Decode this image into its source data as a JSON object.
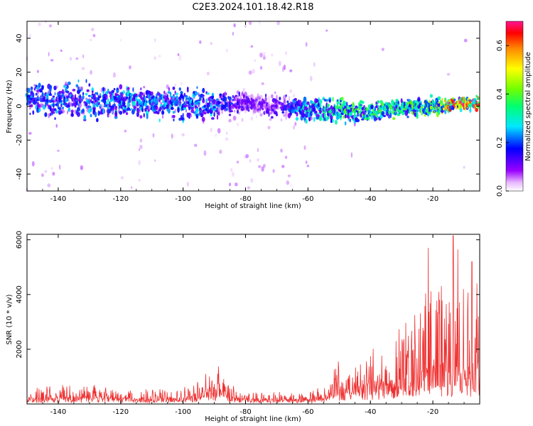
{
  "title": "C2E3.2024.101.18.42.R18",
  "chart_data": [
    {
      "type": "heatmap",
      "xlabel": "Height of straight line (km)",
      "ylabel": "Frequency (Hz)",
      "xlim": [
        -150,
        -5
      ],
      "ylim": [
        -50,
        50
      ],
      "xticks": [
        -140,
        -120,
        -100,
        -80,
        -60,
        -40,
        -20
      ],
      "xtick_labels": [
        "-140",
        "-120",
        "-100",
        "-80",
        "-60",
        "-40",
        "-20"
      ],
      "yticks": [
        -40,
        -20,
        0,
        20,
        40
      ],
      "ytick_labels": [
        "-40",
        "-20",
        "0",
        "20",
        "40"
      ],
      "colorbar": {
        "label": "Normalized spectral amplitude",
        "range": [
          0,
          0.7
        ],
        "ticks": [
          0.0,
          0.2,
          0.4,
          0.6
        ],
        "tick_labels": [
          "0.0",
          "0.2",
          "0.4",
          "0.6"
        ],
        "colormap": "rainbow-white-to-magenta"
      },
      "profile": [
        {
          "x": -150,
          "center": 4,
          "halfwidth": 8,
          "amp": 0.18,
          "scatter": 0.35
        },
        {
          "x": -130,
          "center": 3,
          "halfwidth": 8,
          "amp": 0.2,
          "scatter": 0.35
        },
        {
          "x": -120,
          "center": 3,
          "halfwidth": 6,
          "amp": 0.22,
          "scatter": 0.3
        },
        {
          "x": -100,
          "center": 1,
          "halfwidth": 7,
          "amp": 0.2,
          "scatter": 0.3
        },
        {
          "x": -90,
          "center": 1,
          "halfwidth": 6,
          "amp": 0.2,
          "scatter": 0.3
        },
        {
          "x": -80,
          "center": 1,
          "halfwidth": 4,
          "amp": 0.1,
          "scatter": 0.6
        },
        {
          "x": -70,
          "center": 0,
          "halfwidth": 4,
          "amp": 0.1,
          "scatter": 0.6
        },
        {
          "x": -60,
          "center": -2,
          "halfwidth": 5,
          "amp": 0.25,
          "scatter": 0.3
        },
        {
          "x": -55,
          "center": -2,
          "halfwidth": 5,
          "amp": 0.25,
          "scatter": 0.2
        },
        {
          "x": -50,
          "center": -3,
          "halfwidth": 5,
          "amp": 0.3,
          "scatter": 0.05
        },
        {
          "x": -40,
          "center": -3,
          "halfwidth": 5,
          "amp": 0.3,
          "scatter": 0.02
        },
        {
          "x": -30,
          "center": -1,
          "halfwidth": 4,
          "amp": 0.3,
          "scatter": 0.02
        },
        {
          "x": -20,
          "center": 0,
          "halfwidth": 4,
          "amp": 0.35,
          "scatter": 0.02
        },
        {
          "x": -12,
          "center": 1,
          "halfwidth": 3,
          "amp": 0.55,
          "scatter": 0.02
        },
        {
          "x": -5,
          "center": 2,
          "halfwidth": 3,
          "amp": 0.5,
          "scatter": 0.02
        }
      ]
    },
    {
      "type": "line",
      "xlabel": "Height of straight line (km)",
      "ylabel": "SNR (10 * v/v)",
      "xlim": [
        -150,
        -5
      ],
      "ylim": [
        0,
        6200
      ],
      "xticks": [
        -140,
        -120,
        -100,
        -80,
        -60,
        -40,
        -20
      ],
      "xtick_labels": [
        "-140",
        "-120",
        "-100",
        "-80",
        "-60",
        "-40",
        "-20"
      ],
      "yticks": [
        2000,
        4000,
        6000
      ],
      "ytick_labels": [
        "2000",
        "4000",
        "6000"
      ],
      "color": "#ee3030",
      "envelope": [
        {
          "x": -150,
          "base": 200,
          "spike": 400
        },
        {
          "x": -140,
          "base": 220,
          "spike": 450
        },
        {
          "x": -130,
          "base": 230,
          "spike": 500
        },
        {
          "x": -120,
          "base": 200,
          "spike": 400
        },
        {
          "x": -110,
          "base": 180,
          "spike": 350
        },
        {
          "x": -100,
          "base": 220,
          "spike": 400
        },
        {
          "x": -95,
          "base": 350,
          "spike": 700
        },
        {
          "x": -90,
          "base": 600,
          "spike": 1000
        },
        {
          "x": -85,
          "base": 250,
          "spike": 450
        },
        {
          "x": -80,
          "base": 180,
          "spike": 300
        },
        {
          "x": -70,
          "base": 150,
          "spike": 250
        },
        {
          "x": -60,
          "base": 180,
          "spike": 300
        },
        {
          "x": -55,
          "base": 250,
          "spike": 500
        },
        {
          "x": -50,
          "base": 500,
          "spike": 1100
        },
        {
          "x": -45,
          "base": 500,
          "spike": 900
        },
        {
          "x": -40,
          "base": 700,
          "spike": 1300
        },
        {
          "x": -35,
          "base": 800,
          "spike": 1800
        },
        {
          "x": -30,
          "base": 900,
          "spike": 2400
        },
        {
          "x": -25,
          "base": 1000,
          "spike": 2900
        },
        {
          "x": -20,
          "base": 1200,
          "spike": 3500
        },
        {
          "x": -15,
          "base": 1300,
          "spike": 4200
        },
        {
          "x": -10,
          "base": 1200,
          "spike": 3800
        },
        {
          "x": -5,
          "base": 1300,
          "spike": 3300
        }
      ],
      "peaks": [
        {
          "x": -13.5,
          "y": 6150
        },
        {
          "x": -21.5,
          "y": 5700
        },
        {
          "x": -12,
          "y": 5650
        },
        {
          "x": -7.5,
          "y": 5200
        }
      ]
    }
  ]
}
